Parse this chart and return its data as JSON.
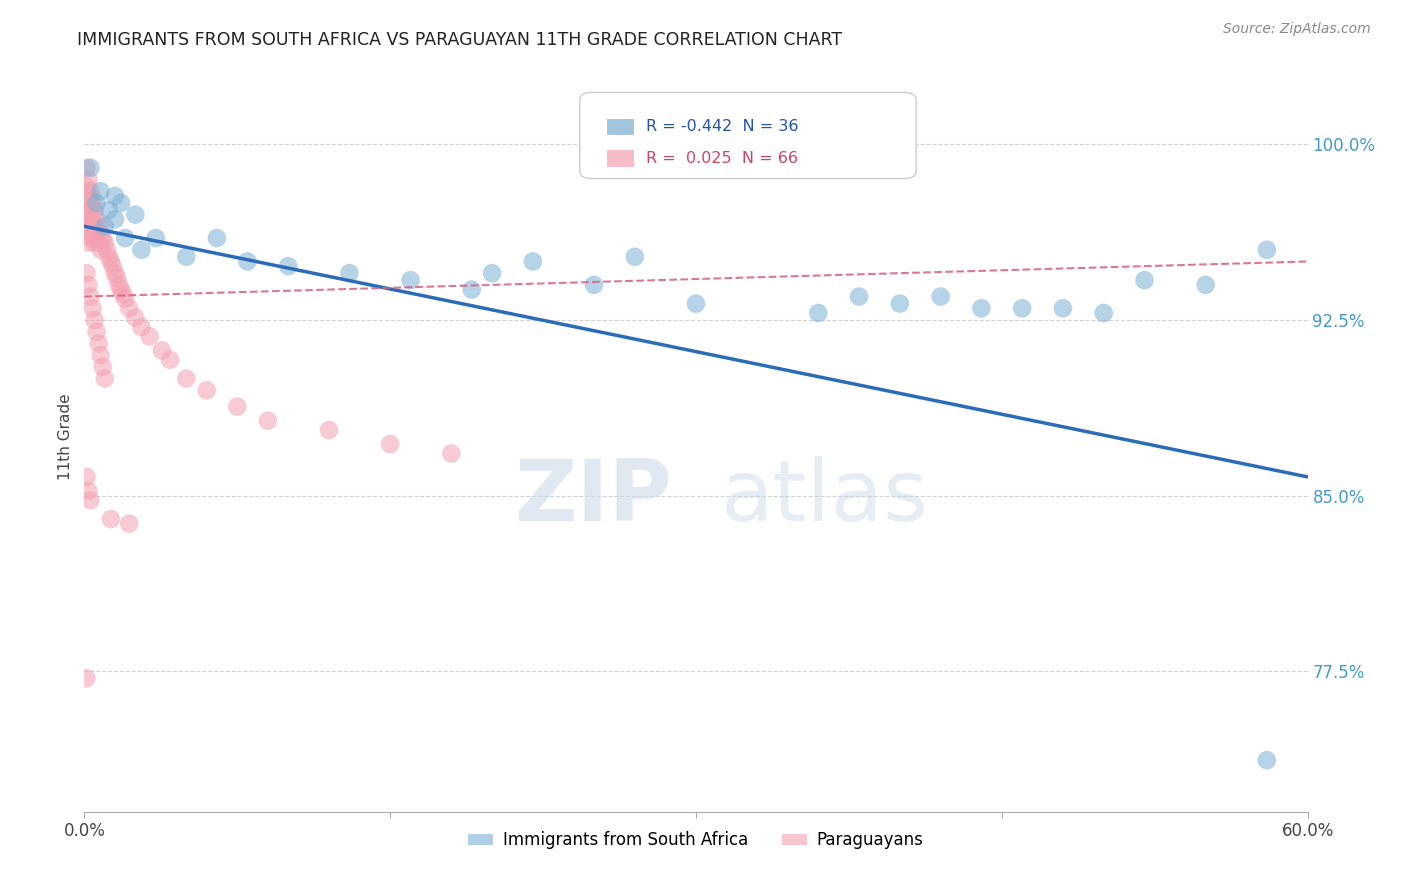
{
  "title": "IMMIGRANTS FROM SOUTH AFRICA VS PARAGUAYAN 11TH GRADE CORRELATION CHART",
  "source": "Source: ZipAtlas.com",
  "ylabel": "11th Grade",
  "ytick_labels": [
    "77.5%",
    "85.0%",
    "92.5%",
    "100.0%"
  ],
  "ytick_values": [
    0.775,
    0.85,
    0.925,
    1.0
  ],
  "xlim": [
    0.0,
    0.6
  ],
  "ylim": [
    0.715,
    1.035
  ],
  "legend_blue_r": "-0.442",
  "legend_blue_n": "36",
  "legend_pink_r": "0.025",
  "legend_pink_n": "66",
  "blue_scatter_x": [
    0.003,
    0.006,
    0.008,
    0.01,
    0.012,
    0.015,
    0.018,
    0.02,
    0.025,
    0.028,
    0.035,
    0.05,
    0.065,
    0.08,
    0.1,
    0.13,
    0.16,
    0.19,
    0.22,
    0.25,
    0.3,
    0.36,
    0.4,
    0.44,
    0.48,
    0.5,
    0.52,
    0.55,
    0.2,
    0.27,
    0.38,
    0.42,
    0.46,
    0.58,
    0.015,
    0.58
  ],
  "blue_scatter_y": [
    0.99,
    0.975,
    0.98,
    0.965,
    0.972,
    0.968,
    0.975,
    0.96,
    0.97,
    0.955,
    0.96,
    0.952,
    0.96,
    0.95,
    0.948,
    0.945,
    0.942,
    0.938,
    0.95,
    0.94,
    0.932,
    0.928,
    0.932,
    0.93,
    0.93,
    0.928,
    0.942,
    0.94,
    0.945,
    0.952,
    0.935,
    0.935,
    0.93,
    0.955,
    0.978,
    0.737
  ],
  "pink_scatter_x": [
    0.001,
    0.001,
    0.001,
    0.001,
    0.002,
    0.002,
    0.002,
    0.002,
    0.002,
    0.003,
    0.003,
    0.003,
    0.003,
    0.004,
    0.004,
    0.004,
    0.005,
    0.005,
    0.005,
    0.006,
    0.006,
    0.007,
    0.007,
    0.008,
    0.008,
    0.009,
    0.01,
    0.011,
    0.012,
    0.013,
    0.014,
    0.015,
    0.016,
    0.017,
    0.018,
    0.019,
    0.02,
    0.022,
    0.025,
    0.028,
    0.032,
    0.038,
    0.042,
    0.05,
    0.06,
    0.075,
    0.09,
    0.12,
    0.15,
    0.18,
    0.001,
    0.002,
    0.003,
    0.004,
    0.005,
    0.006,
    0.007,
    0.008,
    0.009,
    0.01,
    0.001,
    0.002,
    0.003,
    0.001,
    0.013,
    0.022
  ],
  "pink_scatter_y": [
    0.99,
    0.982,
    0.976,
    0.97,
    0.985,
    0.978,
    0.972,
    0.965,
    0.958,
    0.98,
    0.974,
    0.968,
    0.96,
    0.976,
    0.968,
    0.962,
    0.972,
    0.965,
    0.958,
    0.968,
    0.96,
    0.965,
    0.958,
    0.962,
    0.955,
    0.96,
    0.958,
    0.955,
    0.952,
    0.95,
    0.948,
    0.945,
    0.943,
    0.94,
    0.938,
    0.936,
    0.934,
    0.93,
    0.926,
    0.922,
    0.918,
    0.912,
    0.908,
    0.9,
    0.895,
    0.888,
    0.882,
    0.878,
    0.872,
    0.868,
    0.945,
    0.94,
    0.935,
    0.93,
    0.925,
    0.92,
    0.915,
    0.91,
    0.905,
    0.9,
    0.858,
    0.852,
    0.848,
    0.772,
    0.84,
    0.838
  ],
  "blue_line_x": [
    0.0,
    0.6
  ],
  "blue_line_y": [
    0.965,
    0.858
  ],
  "pink_line_x": [
    0.0,
    0.6
  ],
  "pink_line_y": [
    0.935,
    0.95
  ],
  "blue_color": "#7BAFD4",
  "pink_color": "#F4A0B0",
  "blue_line_color": "#2B6CB8",
  "pink_line_color": "#D46080",
  "watermark_zip": "ZIP",
  "watermark_atlas": "atlas",
  "grid_color": "#CCCCCC",
  "legend_box_color": "#DDDDDD"
}
